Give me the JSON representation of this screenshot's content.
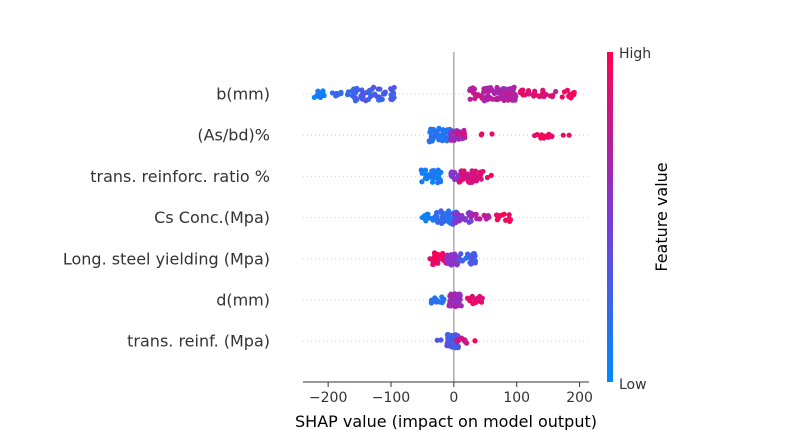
{
  "chart_data": {
    "type": "scatter",
    "subtype": "shap-beeswarm",
    "xlabel": "SHAP value (impact on model output)",
    "xlim": [
      -240,
      215
    ],
    "xticks": [
      -200,
      -100,
      0,
      100,
      200
    ],
    "zero_line": 0,
    "colorbar": {
      "label": "Feature value",
      "high_label": "High",
      "low_label": "Low",
      "low_color": "#008bfb",
      "high_color": "#ff0052"
    },
    "features": [
      {
        "name": "b(mm)",
        "clusters": [
          {
            "min": -222,
            "max": -205,
            "n": 14,
            "v": 0.05,
            "spread": 0.6
          },
          {
            "min": -195,
            "max": -165,
            "n": 9,
            "v": 0.22,
            "spread": 0.35
          },
          {
            "min": -162,
            "max": -92,
            "n": 55,
            "v": 0.27,
            "spread": 1.0
          },
          {
            "min": 22,
            "max": 48,
            "n": 16,
            "v": 0.75,
            "spread": 0.9
          },
          {
            "min": 48,
            "max": 100,
            "n": 62,
            "v": 0.7,
            "spread": 1.0
          },
          {
            "min": 100,
            "max": 150,
            "n": 24,
            "v": 0.9,
            "spread": 0.6
          },
          {
            "min": 150,
            "max": 162,
            "n": 4,
            "v": 0.8,
            "spread": 0.4
          },
          {
            "min": 172,
            "max": 192,
            "n": 14,
            "v": 0.95,
            "spread": 0.6
          }
        ]
      },
      {
        "name": "(As/bd)%",
        "clusters": [
          {
            "min": -40,
            "max": -5,
            "n": 40,
            "v": 0.15,
            "spread": 1.0
          },
          {
            "min": -5,
            "max": 18,
            "n": 26,
            "v": 0.6,
            "spread": 0.8
          },
          {
            "min": 5,
            "max": 22,
            "n": 6,
            "v": 0.8,
            "spread": 0.4
          },
          {
            "min": 40,
            "max": 62,
            "n": 3,
            "v": 0.95,
            "spread": 0.2
          },
          {
            "min": 128,
            "max": 158,
            "n": 12,
            "v": 0.95,
            "spread": 0.45
          },
          {
            "min": 170,
            "max": 196,
            "n": 2,
            "v": 0.95,
            "spread": 0.2
          }
        ]
      },
      {
        "name": "trans. reinforc. ratio %",
        "clusters": [
          {
            "min": -52,
            "max": -20,
            "n": 36,
            "v": 0.1,
            "spread": 1.0
          },
          {
            "min": -5,
            "max": 12,
            "n": 20,
            "v": 0.55,
            "spread": 0.8
          },
          {
            "min": 8,
            "max": 48,
            "n": 40,
            "v": 0.85,
            "spread": 0.9
          },
          {
            "min": 52,
            "max": 62,
            "n": 2,
            "v": 0.95,
            "spread": 0.2
          }
        ]
      },
      {
        "name": "Cs Conc.(Mpa)",
        "clusters": [
          {
            "min": -58,
            "max": -28,
            "n": 12,
            "v": 0.1,
            "spread": 0.5
          },
          {
            "min": -28,
            "max": 5,
            "n": 45,
            "v": 0.2,
            "spread": 1.0
          },
          {
            "min": 0,
            "max": 28,
            "n": 25,
            "v": 0.5,
            "spread": 0.8
          },
          {
            "min": 28,
            "max": 62,
            "n": 12,
            "v": 0.75,
            "spread": 0.5
          },
          {
            "min": 65,
            "max": 92,
            "n": 16,
            "v": 0.95,
            "spread": 0.6
          }
        ]
      },
      {
        "name": "Long. steel yielding (Mpa)",
        "clusters": [
          {
            "min": -38,
            "max": -12,
            "n": 24,
            "v": 0.92,
            "spread": 0.9
          },
          {
            "min": -12,
            "max": 8,
            "n": 34,
            "v": 0.55,
            "spread": 1.0
          },
          {
            "min": 8,
            "max": 35,
            "n": 26,
            "v": 0.25,
            "spread": 0.8
          }
        ]
      },
      {
        "name": "d(mm)",
        "clusters": [
          {
            "min": -38,
            "max": -15,
            "n": 14,
            "v": 0.15,
            "spread": 0.5
          },
          {
            "min": -8,
            "max": 12,
            "n": 50,
            "v": 0.65,
            "spread": 1.0
          },
          {
            "min": 12,
            "max": 48,
            "n": 16,
            "v": 0.9,
            "spread": 0.6
          }
        ]
      },
      {
        "name": "trans. reinf. (Mpa)",
        "clusters": [
          {
            "min": -28,
            "max": -18,
            "n": 2,
            "v": 0.4,
            "spread": 0.2
          },
          {
            "min": -12,
            "max": 8,
            "n": 60,
            "v": 0.3,
            "spread": 1.0
          },
          {
            "min": 5,
            "max": 28,
            "n": 10,
            "v": 0.8,
            "spread": 0.5
          },
          {
            "min": 32,
            "max": 38,
            "n": 1,
            "v": 0.95,
            "spread": 0.1
          }
        ]
      }
    ]
  }
}
